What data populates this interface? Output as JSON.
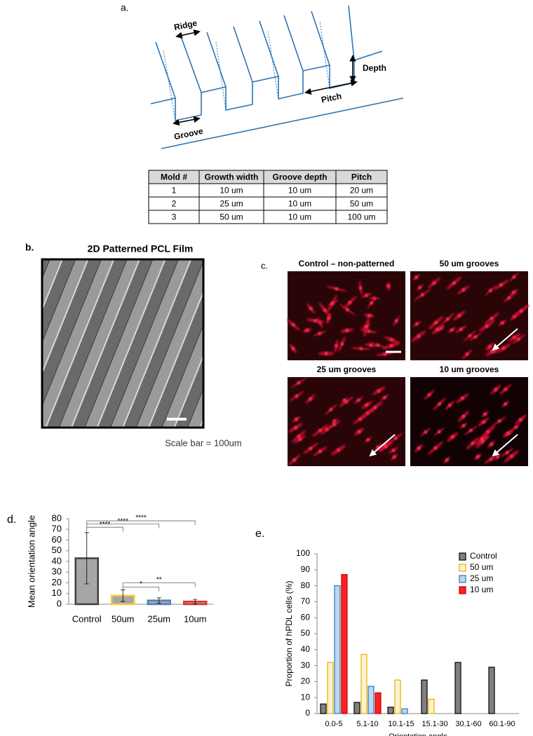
{
  "panel_labels": [
    "a.",
    "b.",
    "c.",
    "d.",
    "e."
  ],
  "diagram": {
    "labels": [
      "Ridge",
      "Depth",
      "Pitch",
      "Groove"
    ]
  },
  "table": {
    "header": [
      "Mold #",
      "Growth width",
      "Groove depth",
      "Pitch"
    ],
    "rows": [
      [
        "1",
        "10 um",
        "10 um",
        "20 um"
      ],
      [
        "2",
        "25 um",
        "10 um",
        "50 um"
      ],
      [
        "3",
        "50 um",
        "10 um",
        "100 um"
      ]
    ]
  },
  "film": {
    "title": "2D Patterned PCL Film",
    "caption": "Scale bar = 100um"
  },
  "micrographs": [
    "Control – non-patterned",
    "50 um grooves",
    "25 um grooves",
    "10 um grooves"
  ],
  "chart_data": [
    {
      "type": "bar",
      "ylabel": "Mean orientation angle",
      "categories": [
        "Control",
        "50um",
        "25um",
        "10um"
      ],
      "values": [
        43,
        8,
        3.5,
        2.5
      ],
      "errors": [
        24,
        5.5,
        2.5,
        2
      ],
      "fill": "#a6a6a6",
      "edge_colors": [
        "#404040",
        "#f2c744",
        "#4f81bd",
        "#e03030"
      ],
      "ylim": [
        0,
        80
      ],
      "yticks": [
        0,
        10,
        20,
        30,
        40,
        50,
        60,
        70,
        80
      ],
      "significance": [
        {
          "from": 0,
          "to": 1,
          "level": 72,
          "label": "****"
        },
        {
          "from": 0,
          "to": 2,
          "level": 75,
          "label": "****"
        },
        {
          "from": 0,
          "to": 3,
          "level": 78,
          "label": "****"
        },
        {
          "from": 1,
          "to": 2,
          "level": 16,
          "label": "*"
        },
        {
          "from": 1,
          "to": 3,
          "level": 20,
          "label": "**"
        }
      ]
    },
    {
      "type": "grouped_bar",
      "ylabel": "Proportion of hPDL cells (%)",
      "xlabel": "Orientation angle",
      "categories": [
        "0.0-5",
        "5.1-10",
        "10.1-15",
        "15.1-30",
        "30.1-60",
        "60.1-90"
      ],
      "series": [
        {
          "name": "Control",
          "color": "#808080",
          "edge": "#000000",
          "values": [
            6,
            7,
            4,
            21,
            32,
            29
          ]
        },
        {
          "name": "50 um",
          "color": "#fff2cc",
          "edge": "#e6b000",
          "values": [
            32,
            37,
            21,
            9,
            0,
            0
          ]
        },
        {
          "name": "25 um",
          "color": "#bdd7ee",
          "edge": "#2e75b6",
          "values": [
            80,
            17,
            3,
            0,
            0,
            0
          ]
        },
        {
          "name": "10 um",
          "color": "#ff2020",
          "edge": "#c00000",
          "values": [
            87,
            13,
            0,
            0,
            0,
            0
          ]
        }
      ],
      "ylim": [
        0,
        100
      ],
      "yticks": [
        0,
        10,
        20,
        30,
        40,
        50,
        60,
        70,
        80,
        90,
        100
      ],
      "legend": "upper right"
    }
  ]
}
